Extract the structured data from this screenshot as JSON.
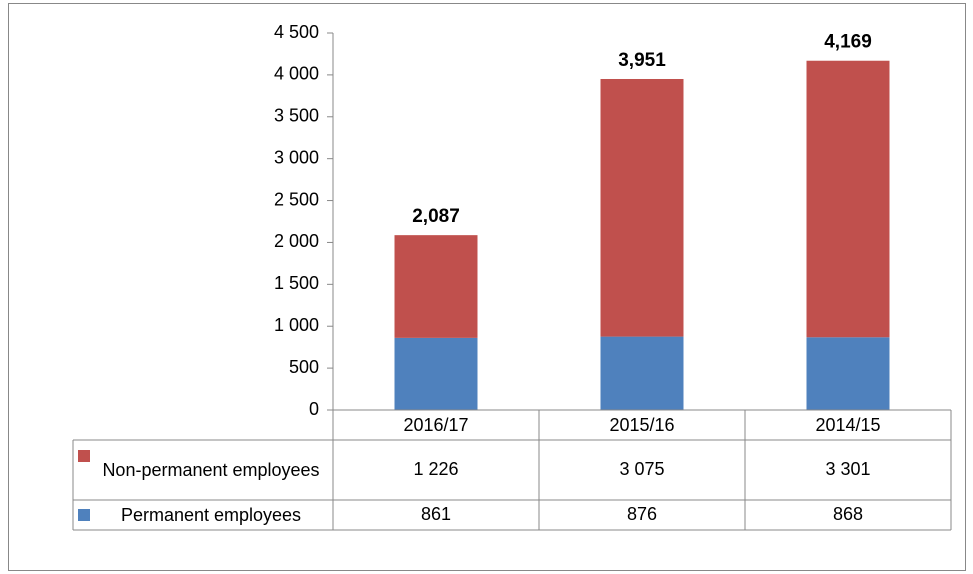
{
  "chart_data": {
    "type": "stacked_bar",
    "categories": [
      "2016/17",
      "2015/16",
      "2014/15"
    ],
    "series": [
      {
        "name": "Non-permanent employees",
        "color": "#c0504d",
        "values": [
          1226,
          3075,
          3301
        ],
        "value_labels": [
          "1 226",
          "3 075",
          "3 301"
        ]
      },
      {
        "name": "Permanent employees",
        "color": "#4f81bd",
        "values": [
          861,
          876,
          868
        ]
      }
    ],
    "total_labels": [
      "2,087",
      "3,951",
      "4,169"
    ],
    "ylim": [
      0,
      4500
    ],
    "yticks": [
      0,
      500,
      {
        "value": 1000,
        "label": "1 000"
      },
      {
        "value": 1500,
        "label": "1 500"
      },
      {
        "value": 2000,
        "label": "2 000"
      },
      {
        "value": 2500,
        "label": "2 500"
      },
      {
        "value": 3000,
        "label": "3 000"
      },
      {
        "value": 3500,
        "label": "3 500"
      },
      {
        "value": 4000,
        "label": "4 000"
      },
      {
        "value": 4500,
        "label": "4 500"
      }
    ],
    "grid": false,
    "data_table": true
  }
}
